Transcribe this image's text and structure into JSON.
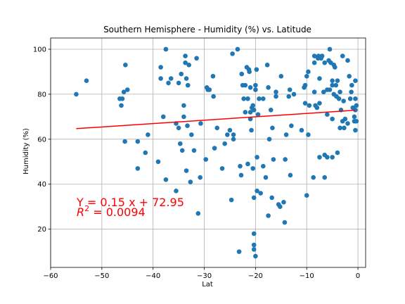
{
  "chart_data": {
    "type": "scatter",
    "title": "Southern Hemisphere - Humidity (%) vs. Latitude",
    "xlabel": "Lat",
    "ylabel": "Humidity (%)",
    "xlim": [
      -60,
      1.5
    ],
    "ylim": [
      3,
      105
    ],
    "xticks": [
      -60,
      -50,
      -40,
      -30,
      -20,
      -10,
      0
    ],
    "yticks": [
      20,
      40,
      60,
      80,
      100
    ],
    "grid": true,
    "colors": {
      "points": "#1f77b4",
      "regression": "#ff0000",
      "annotation": "#ff0000"
    },
    "annotation": {
      "equation": "Y = 0.15 x + 72.95",
      "r2_label": "R",
      "r2_exp": "2",
      "r2_value": " = 0.0094"
    },
    "regression": {
      "slope": 0.15,
      "intercept": 72.95,
      "x_range": [
        -55,
        -0.5
      ]
    },
    "points": [
      [
        -55,
        80
      ],
      [
        -53,
        86
      ],
      [
        -46.5,
        78
      ],
      [
        -46.2,
        75
      ],
      [
        -46,
        78
      ],
      [
        -45.7,
        81
      ],
      [
        -45.5,
        59
      ],
      [
        -45.4,
        93
      ],
      [
        -45,
        82
      ],
      [
        -43,
        59
      ],
      [
        -43,
        47
      ],
      [
        -41.5,
        54
      ],
      [
        -41,
        62
      ],
      [
        -39,
        50
      ],
      [
        -38.5,
        87
      ],
      [
        -38.5,
        92
      ],
      [
        -38,
        70
      ],
      [
        -37.5,
        100
      ],
      [
        -37.5,
        42
      ],
      [
        -37,
        85
      ],
      [
        -36.5,
        87
      ],
      [
        -35.5,
        37
      ],
      [
        -35.5,
        67
      ],
      [
        -35,
        85
      ],
      [
        -35,
        65
      ],
      [
        -34.7,
        58
      ],
      [
        -34.5,
        89
      ],
      [
        -34.3,
        55
      ],
      [
        -34,
        75
      ],
      [
        -34,
        70
      ],
      [
        -33.7,
        97
      ],
      [
        -33.7,
        94
      ],
      [
        -33.5,
        46
      ],
      [
        -33.5,
        87
      ],
      [
        -33.3,
        66
      ],
      [
        -33.2,
        84
      ],
      [
        -33,
        93
      ],
      [
        -32.7,
        41
      ],
      [
        -32.5,
        62
      ],
      [
        -32,
        55
      ],
      [
        -31.5,
        96
      ],
      [
        -31.2,
        27
      ],
      [
        -30.8,
        43
      ],
      [
        -30.7,
        67
      ],
      [
        -29.7,
        51
      ],
      [
        -29.5,
        83
      ],
      [
        -29.3,
        82
      ],
      [
        -29,
        82
      ],
      [
        -28.3,
        88
      ],
      [
        -28.2,
        79
      ],
      [
        -28,
        56
      ],
      [
        -27.5,
        65
      ],
      [
        -26.5,
        47
      ],
      [
        -26,
        58
      ],
      [
        -25.5,
        62
      ],
      [
        -25,
        64
      ],
      [
        -24.7,
        33
      ],
      [
        -24.5,
        98
      ],
      [
        -24.3,
        62
      ],
      [
        -24.3,
        60
      ],
      [
        -23.5,
        100
      ],
      [
        -23.2,
        10
      ],
      [
        -23,
        48
      ],
      [
        -22.8,
        44
      ],
      [
        -22.7,
        89
      ],
      [
        -22.5,
        84
      ],
      [
        -22.3,
        78
      ],
      [
        -22,
        84
      ],
      [
        -22,
        72
      ],
      [
        -21.7,
        92
      ],
      [
        -21.5,
        49
      ],
      [
        -21.5,
        78
      ],
      [
        -21.3,
        91
      ],
      [
        -21.2,
        90
      ],
      [
        -21,
        83
      ],
      [
        -21,
        72
      ],
      [
        -21,
        69
      ],
      [
        -20.8,
        64
      ],
      [
        -20.7,
        74
      ],
      [
        -20.5,
        75
      ],
      [
        -20.5,
        47
      ],
      [
        -20.3,
        73
      ],
      [
        -20.3,
        34
      ],
      [
        -20.3,
        18
      ],
      [
        -20.3,
        13
      ],
      [
        -20.3,
        11
      ],
      [
        -20,
        84
      ],
      [
        -20,
        82
      ],
      [
        -20,
        8
      ],
      [
        -19.8,
        91
      ],
      [
        -19.7,
        52
      ],
      [
        -19.7,
        37
      ],
      [
        -19.5,
        71
      ],
      [
        -19.3,
        78
      ],
      [
        -19,
        36
      ],
      [
        -18.5,
        78
      ],
      [
        -18.5,
        48
      ],
      [
        -18,
        43
      ],
      [
        -17.7,
        93
      ],
      [
        -17.5,
        26
      ],
      [
        -17.5,
        83
      ],
      [
        -17.3,
        60
      ],
      [
        -17,
        73
      ],
      [
        -16.8,
        34
      ],
      [
        -16.7,
        65
      ],
      [
        -16.5,
        51
      ],
      [
        -16,
        81
      ],
      [
        -16,
        79
      ],
      [
        -15.5,
        31
      ],
      [
        -15.2,
        30
      ],
      [
        -15,
        88
      ],
      [
        -14.5,
        32
      ],
      [
        -14.3,
        23
      ],
      [
        -14.2,
        51
      ],
      [
        -14,
        62
      ],
      [
        -13.5,
        79
      ],
      [
        -13.3,
        82
      ],
      [
        -13.2,
        44
      ],
      [
        -13,
        66
      ],
      [
        -12.5,
        80
      ],
      [
        -11,
        64
      ],
      [
        -10.5,
        83
      ],
      [
        -10.3,
        84
      ],
      [
        -10.3,
        76
      ],
      [
        -10,
        88
      ],
      [
        -10,
        35
      ],
      [
        -9.7,
        90
      ],
      [
        -9.7,
        62
      ],
      [
        -9.5,
        75
      ],
      [
        -8.7,
        43
      ],
      [
        -8.5,
        97
      ],
      [
        -8.5,
        94
      ],
      [
        -8.5,
        81
      ],
      [
        -8.3,
        75
      ],
      [
        -8,
        74
      ],
      [
        -7.8,
        96
      ],
      [
        -7.7,
        97
      ],
      [
        -7.5,
        87
      ],
      [
        -7.5,
        76
      ],
      [
        -7.5,
        52
      ],
      [
        -7.2,
        96
      ],
      [
        -7,
        97
      ],
      [
        -6.7,
        81
      ],
      [
        -6.5,
        94
      ],
      [
        -6.5,
        53
      ],
      [
        -6.5,
        43
      ],
      [
        -6,
        82
      ],
      [
        -6,
        71
      ],
      [
        -6,
        52
      ],
      [
        -5.7,
        95
      ],
      [
        -5.5,
        82
      ],
      [
        -5.5,
        100
      ],
      [
        -5.3,
        94
      ],
      [
        -5,
        86
      ],
      [
        -5,
        84
      ],
      [
        -5,
        69
      ],
      [
        -5,
        52
      ],
      [
        -4.7,
        93
      ],
      [
        -4.7,
        80
      ],
      [
        -4.5,
        92
      ],
      [
        -4.3,
        84
      ],
      [
        -4.2,
        79
      ],
      [
        -4,
        54
      ],
      [
        -4,
        86
      ],
      [
        -3.7,
        78
      ],
      [
        -3.5,
        81
      ],
      [
        -3.5,
        65
      ],
      [
        -3.3,
        73
      ],
      [
        -3,
        97
      ],
      [
        -3,
        68
      ],
      [
        -2.8,
        77
      ],
      [
        -2.7,
        65
      ],
      [
        -2.5,
        69
      ],
      [
        -2,
        67
      ],
      [
        -2,
        95
      ],
      [
        -1.7,
        88
      ],
      [
        -1.5,
        78
      ],
      [
        -1.3,
        81
      ],
      [
        -1.2,
        84
      ],
      [
        -1,
        74
      ],
      [
        -0.7,
        70
      ],
      [
        -0.7,
        68
      ],
      [
        -0.5,
        64
      ],
      [
        -0.5,
        86
      ],
      [
        -0.5,
        73
      ],
      [
        -0.5,
        78
      ],
      [
        -0.3,
        75
      ],
      [
        -0.3,
        68
      ]
    ]
  }
}
